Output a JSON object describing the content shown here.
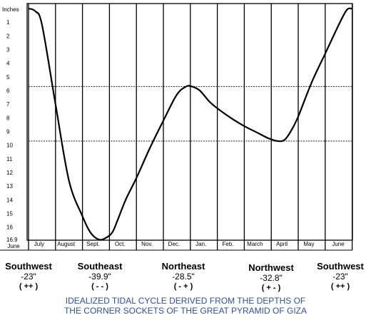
{
  "chart_data": {
    "type": "line",
    "title": "IDEALIZED TIDAL CYCLE DERIVED FROM THE DEPTHS OF THE CORNER SOCKETS OF THE GREAT PYRAMID OF GIZA",
    "ylabel": "Inches",
    "y_ticks": [
      "1",
      "2",
      "3",
      "4",
      "5",
      "6",
      "7",
      "8",
      "9",
      "10",
      "11",
      "12",
      "13",
      "14",
      "15",
      "16",
      "16.9"
    ],
    "ylim": [
      0,
      16.9
    ],
    "y_inverted": true,
    "x_months": [
      "June",
      "July",
      "August",
      "Sept.",
      "Oct.",
      "Nov.",
      "Dec.",
      "Jan.",
      "Feb.",
      "March",
      "April",
      "May",
      "June"
    ],
    "grid": "vertical lines at month boundaries",
    "reference_lines": [
      {
        "y": 5.7,
        "style": "dashed"
      },
      {
        "y": 9.7,
        "style": "dashed"
      }
    ],
    "series": [
      {
        "x": [
          0,
          0.25,
          0.5,
          1.0,
          1.5,
          2.0,
          2.3,
          2.6,
          2.85,
          3.1,
          3.3,
          3.6,
          4.0,
          4.5,
          5.0,
          5.5,
          5.85,
          6.05,
          6.35,
          6.7,
          7.0,
          7.5,
          8.0,
          8.5,
          8.9,
          9.25,
          9.5,
          9.75,
          10.0,
          10.5,
          11.0,
          11.5,
          11.8,
          12.0
        ],
        "y": [
          0.0,
          0.2,
          1.2,
          7.0,
          12.6,
          15.2,
          16.4,
          16.9,
          16.8,
          16.4,
          15.5,
          14.0,
          12.4,
          10.2,
          8.2,
          6.3,
          5.7,
          5.7,
          6.0,
          6.8,
          7.3,
          8.0,
          8.6,
          9.1,
          9.5,
          9.7,
          9.6,
          8.9,
          7.9,
          5.4,
          3.3,
          1.2,
          0.1,
          0.0
        ]
      }
    ]
  },
  "corners": [
    {
      "name": "Southwest",
      "depth": "-23\"",
      "sign": "( ++ )"
    },
    {
      "name": "Southeast",
      "depth": "-39.9\"",
      "sign": "( - - )"
    },
    {
      "name": "Northeast",
      "depth": "-28.5\"",
      "sign": "( - + )"
    },
    {
      "name": "Northwest",
      "depth": "-32.8\"",
      "sign": "( + - )"
    },
    {
      "name": "Southwest",
      "depth": "-23\"",
      "sign": "( ++ )"
    }
  ],
  "caption": {
    "line1": "IDEALIZED TIDAL CYCLE DERIVED FROM THE DEPTHS OF",
    "line2": "THE CORNER SOCKETS OF THE GREAT PYRAMID OF GIZA"
  }
}
